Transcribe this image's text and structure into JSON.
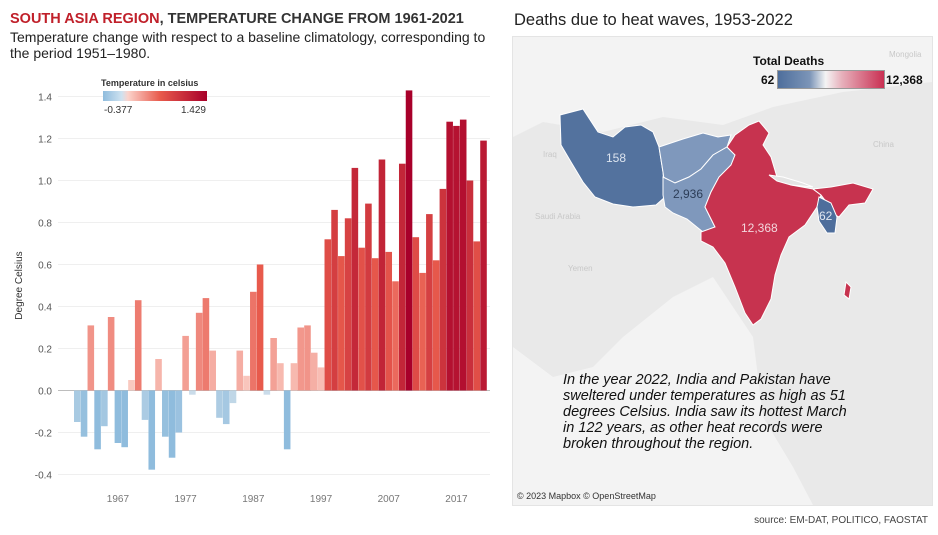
{
  "left": {
    "title_region": "SOUTH ASIA REGION",
    "title_rest": ", TEMPERATURE CHANGE FROM 1961-2021",
    "subtitle": "Temperature change with respect to a baseline climatology, corresponding to the period 1951–1980."
  },
  "chart_data": [
    {
      "type": "bar",
      "ylabel": "Degree Celsius",
      "ylim": [
        -0.45,
        1.45
      ],
      "yticks": [
        -0.4,
        -0.2,
        0.0,
        0.2,
        0.4,
        0.6,
        0.8,
        1.0,
        1.2,
        1.4
      ],
      "xtick_labels": [
        "1967",
        "1977",
        "1987",
        "1997",
        "2007",
        "2017"
      ],
      "grid": true,
      "color_legend": {
        "title": "Temperature in celsius",
        "min_label": "-0.377",
        "max_label": "1.429"
      },
      "x": [
        1961,
        1962,
        1963,
        1964,
        1965,
        1966,
        1967,
        1968,
        1969,
        1970,
        1971,
        1972,
        1973,
        1974,
        1975,
        1976,
        1977,
        1978,
        1979,
        1980,
        1981,
        1982,
        1983,
        1984,
        1985,
        1986,
        1987,
        1988,
        1989,
        1990,
        1991,
        1992,
        1993,
        1994,
        1995,
        1996,
        1997,
        1998,
        1999,
        2000,
        2001,
        2002,
        2003,
        2004,
        2005,
        2006,
        2007,
        2008,
        2009,
        2010,
        2011,
        2012,
        2013,
        2014,
        2015,
        2016,
        2017,
        2018,
        2019,
        2020,
        2021
      ],
      "values": [
        -0.15,
        -0.22,
        0.31,
        -0.28,
        -0.17,
        0.35,
        -0.25,
        -0.27,
        0.05,
        0.43,
        -0.14,
        -0.377,
        0.15,
        -0.22,
        -0.32,
        -0.2,
        0.26,
        -0.02,
        0.37,
        0.44,
        0.19,
        -0.13,
        -0.16,
        -0.06,
        0.19,
        0.07,
        0.47,
        0.6,
        -0.02,
        0.25,
        0.13,
        -0.28,
        0.13,
        0.3,
        0.31,
        0.18,
        0.11,
        0.72,
        0.86,
        0.64,
        0.82,
        1.06,
        0.68,
        0.89,
        0.63,
        1.1,
        0.66,
        0.52,
        1.08,
        1.429,
        0.73,
        0.56,
        0.84,
        0.62,
        0.96,
        1.28,
        1.26,
        1.29,
        1.0,
        0.71,
        1.19
      ]
    },
    {
      "type": "table",
      "title": "Deaths due to heat waves, 1953-2022",
      "legend": {
        "title": "Total Deaths",
        "min_label": "62",
        "max_label": "12,368"
      },
      "rows": [
        {
          "country": "Iran",
          "deaths": 158
        },
        {
          "country": "Pakistan",
          "deaths": 2936
        },
        {
          "country": "India",
          "deaths": 12368
        },
        {
          "country": "Bangladesh",
          "deaths": 62
        }
      ]
    }
  ],
  "map": {
    "title": "Deaths due to heat waves, 1953-2022",
    "legend_title": "Total Deaths",
    "legend_min": "62",
    "legend_max": "12,368",
    "label_iran": "158",
    "label_pakistan": "2,936",
    "label_india": "12,368",
    "label_bangladesh": "62",
    "bg_mongolia": "Mongolia",
    "bg_iraq": "Iraq",
    "bg_china": "China",
    "bg_saudi": "Saudi Arabia",
    "bg_yemen": "Yemen",
    "note": "In the year 2022, India and Pakistan have sweltered under temperatures as high as 51 degrees Celsius.  India saw its hottest March in 122 years, as other heat records were broken throughout the region.",
    "credit": "© 2023 Mapbox © OpenStreetMap"
  },
  "colors": {
    "cold": "#8fbcdd",
    "neutral": "#f2f2f2",
    "warm": "#e85a4c",
    "hot": "#a8002a",
    "map_low": "#4e6e9c",
    "map_high": "#c92f52",
    "title_accent": "#c0202a"
  },
  "source": "source: EM-DAT, POLITICO, FAOSTAT"
}
